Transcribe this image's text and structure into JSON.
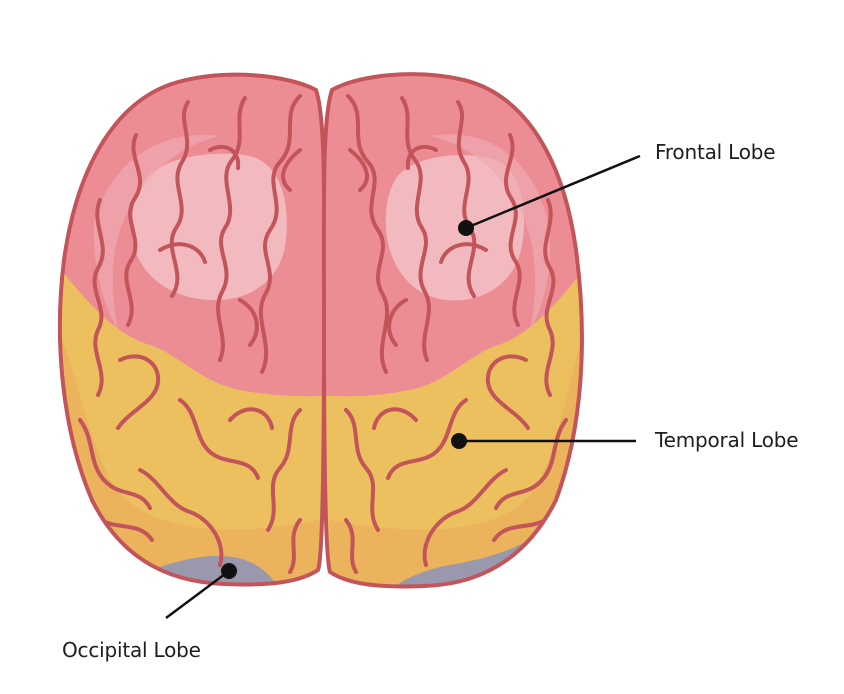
{
  "labels": {
    "frontal": "Frontal Lobe",
    "temporal": "Temporal Lobe",
    "occipital": "Occipital Lobe"
  },
  "colors": {
    "frontal_fill": "#ec8d95",
    "frontal_highlight": "#f3c2c6",
    "temporal_fill": "#ecbf5f",
    "temporal_shade": "#e9a95a",
    "occipital_fill": "#9a98ad",
    "outline": "#c2545a",
    "pointer": "#111111"
  },
  "icons": {
    "brain": "brain-top-view-icon"
  }
}
